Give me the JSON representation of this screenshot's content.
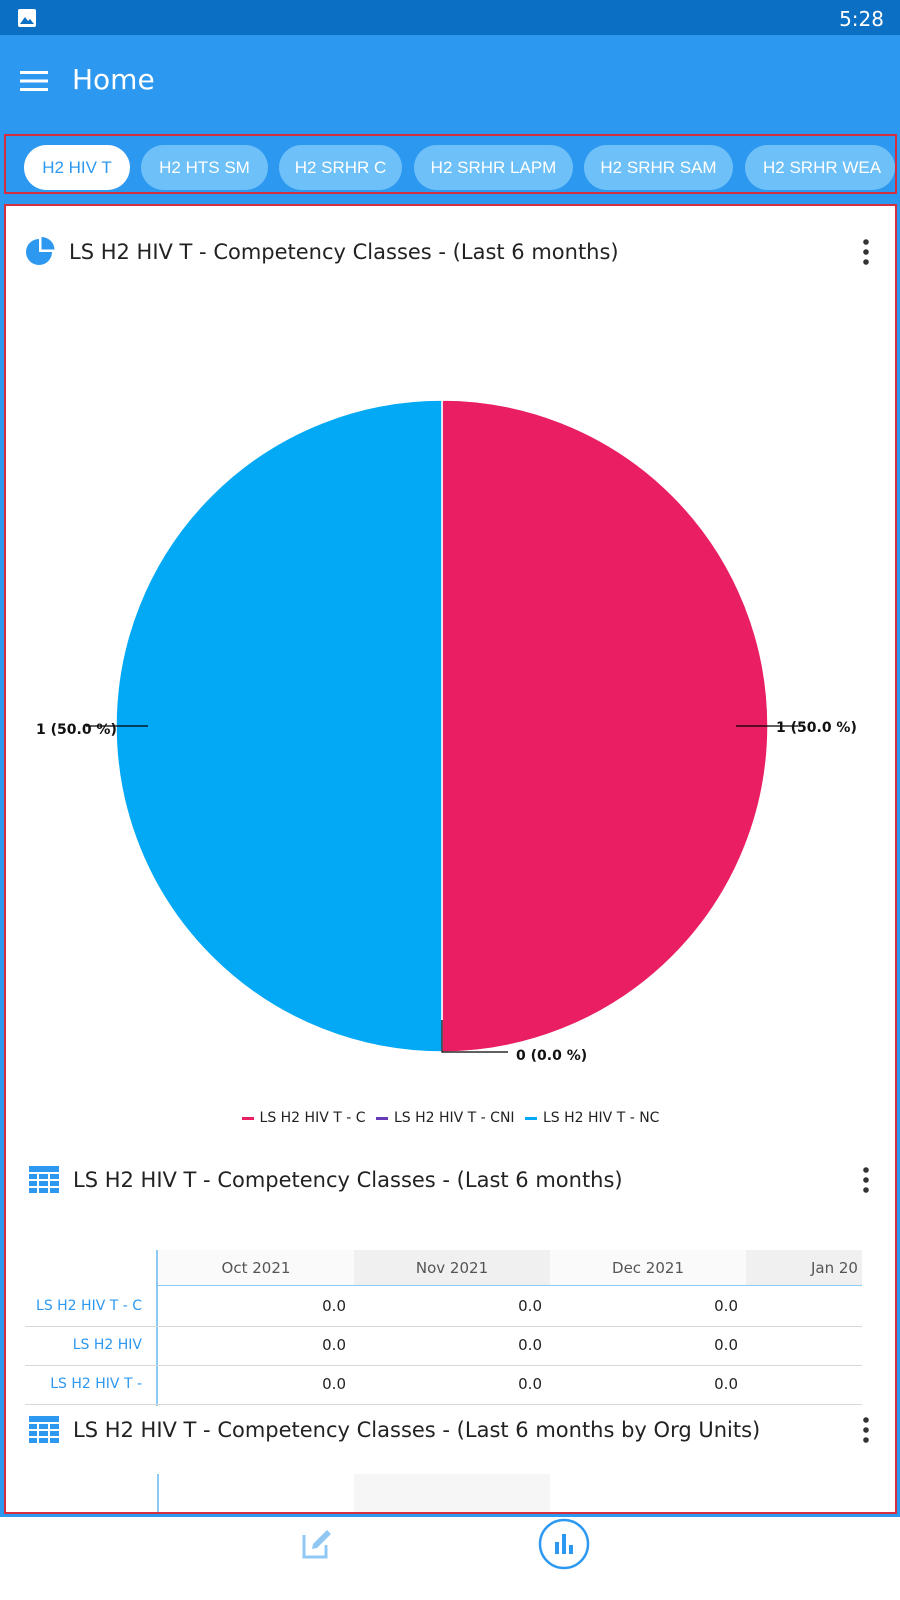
{
  "status_bar": {
    "time": "5:28",
    "left_icon": "image-icon"
  },
  "app_bar": {
    "title": "Home",
    "menu_icon": "menu-icon"
  },
  "tabs": [
    {
      "label": "H2 HIV T",
      "active": true
    },
    {
      "label": "H2 HTS SM",
      "active": false
    },
    {
      "label": "H2 SRHR C",
      "active": false
    },
    {
      "label": "H2 SRHR LAPM",
      "active": false
    },
    {
      "label": "H2 SRHR SAM",
      "active": false
    },
    {
      "label": "H2 SRHR WEA",
      "active": false
    }
  ],
  "pie_card": {
    "title": "LS H2 HIV T - Competency Classes - (Last 6 months)",
    "icon": "pie-chart-icon",
    "menu_icon": "more-vertical-icon"
  },
  "chart_data": {
    "type": "pie",
    "slices": [
      {
        "name": "LS H2 HIV T - C",
        "value": 1,
        "label": "1 (50.0 %)",
        "color": "#e91e63"
      },
      {
        "name": "LS H2 HIV T - CNI",
        "value": 0,
        "label": "0 (0.0 %)",
        "color": "#673ab7"
      },
      {
        "name": "LS H2 HIV T - NC",
        "value": 1,
        "label": "1 (50.0 %)",
        "color": "#03a9f4"
      }
    ],
    "legend_position": "bottom"
  },
  "table_card": {
    "title": "LS H2 HIV T - Competency Classes - (Last 6 months)",
    "icon": "table-icon",
    "menu_icon": "more-vertical-icon",
    "columns": [
      "Oct 2021",
      "Nov 2021",
      "Dec 2021",
      "Jan 20"
    ],
    "rows": [
      {
        "label": "LS H2 HIV T - C",
        "values": [
          "0.0",
          "0.0",
          "0.0"
        ]
      },
      {
        "label": "LS H2 HIV",
        "values": [
          "0.0",
          "0.0",
          "0.0"
        ]
      },
      {
        "label": "LS H2 HIV T -",
        "values": [
          "0.0",
          "0.0",
          "0.0"
        ]
      }
    ]
  },
  "org_card": {
    "title": "LS H2 HIV T - Competency Classes - (Last 6 months by Org Units)",
    "icon": "table-icon",
    "menu_icon": "more-vertical-icon"
  },
  "bottom_nav": [
    {
      "icon": "edit-icon",
      "active": false
    },
    {
      "icon": "bar-chart-icon",
      "active": true
    }
  ],
  "colors": {
    "primary": "#2d98ef",
    "status_bar": "#0b6fc4",
    "chip": "#6ec0f8",
    "table_accent": "#8ccaf6"
  }
}
